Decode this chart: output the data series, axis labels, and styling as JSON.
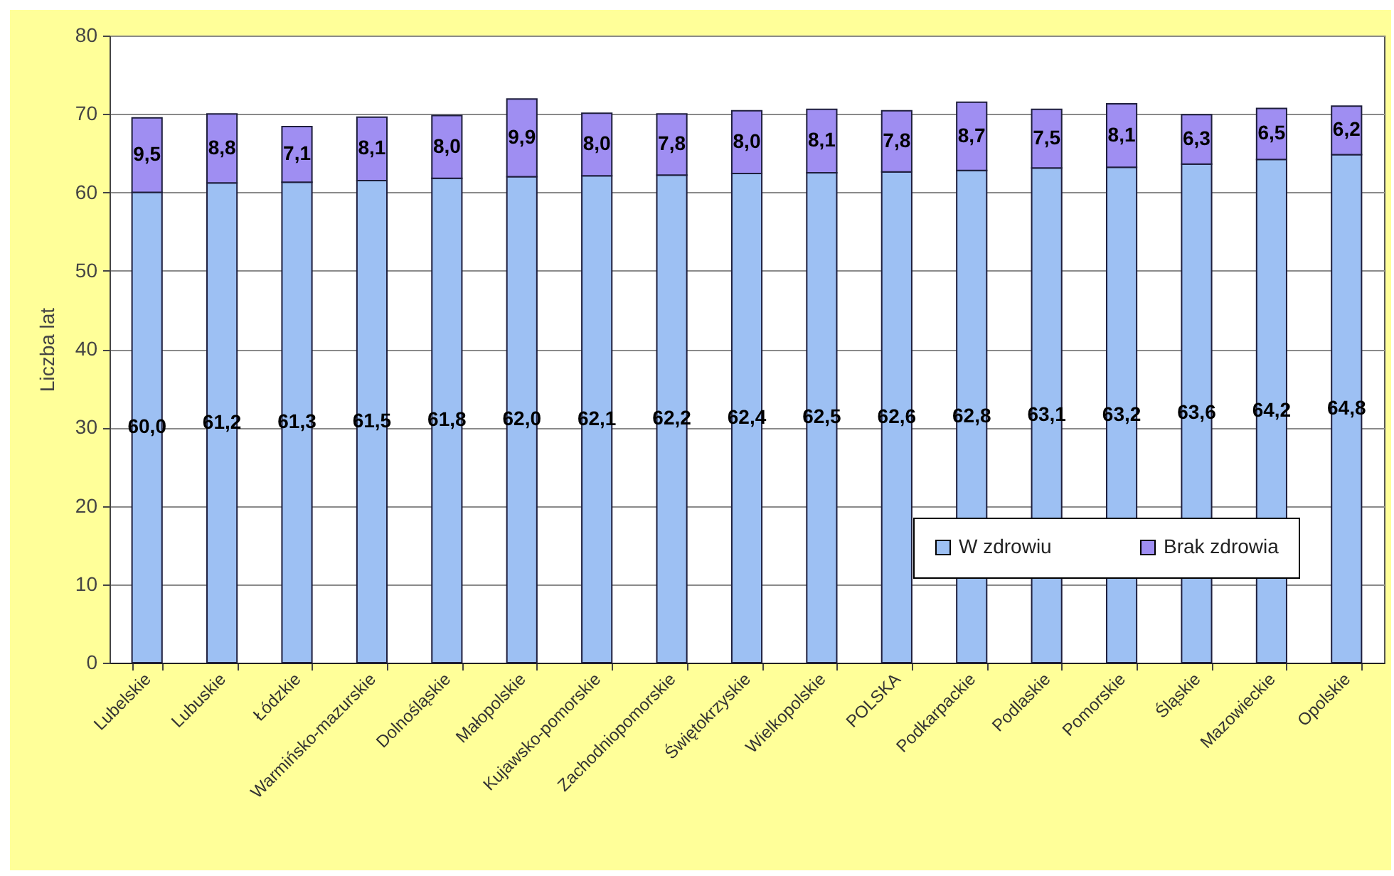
{
  "chart_data": {
    "type": "bar",
    "ylabel": "Liczba lat",
    "categories": [
      "Lubelskie",
      "Lubuskie",
      "Łódzkie",
      "Warmińsko-mazurskie",
      "Dolnośląskie",
      "Małopolskie",
      "Kujawsko-pomorskie",
      "Zachodniopomorskie",
      "Świętokrzyskie",
      "Wielkopolskie",
      "POLSKA",
      "Podkarpackie",
      "Podlaskie",
      "Pomorskie",
      "Śląskie",
      "Mazowieckie",
      "Opolskie"
    ],
    "series": [
      {
        "name": "W zdrowiu",
        "color": "#9dc0f3",
        "values": [
          60.0,
          61.2,
          61.3,
          61.5,
          61.8,
          62.0,
          62.1,
          62.2,
          62.4,
          62.5,
          62.6,
          62.8,
          63.1,
          63.2,
          63.6,
          64.2,
          64.8
        ],
        "value_labels": [
          "60,0",
          "61,2",
          "61,3",
          "61,5",
          "61,8",
          "62,0",
          "62,1",
          "62,2",
          "62,4",
          "62,5",
          "62,6",
          "62,8",
          "63,1",
          "63,2",
          "63,6",
          "64,2",
          "64,8"
        ]
      },
      {
        "name": "Brak zdrowia",
        "color": "#9f8ef2",
        "values": [
          9.5,
          8.8,
          7.1,
          8.1,
          8.0,
          9.9,
          8.0,
          7.8,
          8.0,
          8.1,
          7.8,
          8.7,
          7.5,
          8.1,
          6.3,
          6.5,
          6.2
        ],
        "value_labels": [
          "9,5",
          "8,8",
          "7,1",
          "8,1",
          "8,0",
          "9,9",
          "8,0",
          "7,8",
          "8,0",
          "8,1",
          "7,8",
          "8,7",
          "7,5",
          "8,1",
          "6,3",
          "6,5",
          "6,2"
        ]
      }
    ],
    "stacked": true,
    "ylim": [
      0,
      80
    ],
    "yticks": [
      0,
      10,
      20,
      30,
      40,
      50,
      60,
      70,
      80
    ],
    "grid": "y",
    "legend": "bottom right"
  }
}
